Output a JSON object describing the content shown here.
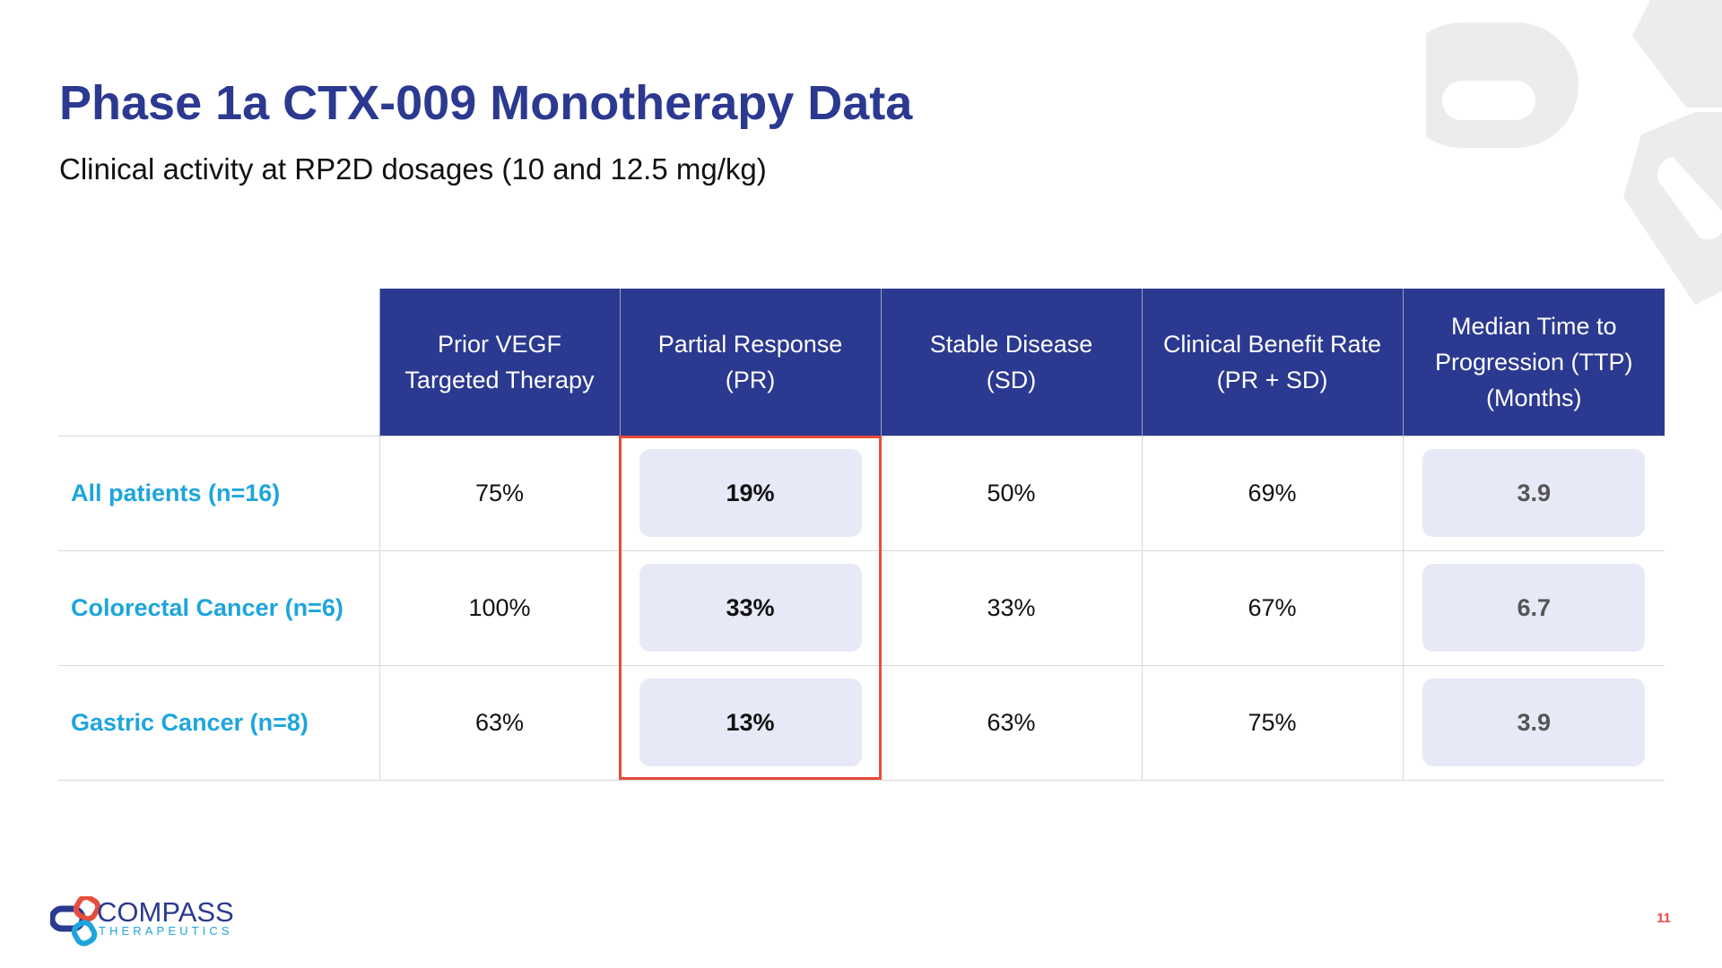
{
  "slide": {
    "title": "Phase 1a CTX-009 Monotherapy Data",
    "subtitle": "Clinical activity at RP2D dosages (10 and 12.5 mg/kg)",
    "page_number": "11"
  },
  "table": {
    "headers": [
      "Prior VEGF Targeted Therapy",
      "Partial Response (PR)",
      "Stable Disease (SD)",
      "Clinical Benefit Rate (PR + SD)",
      "Median Time to Progression (TTP) (Months)"
    ],
    "header_lines": [
      [
        "Prior VEGF",
        "Targeted Therapy"
      ],
      [
        "Partial Response",
        "(PR)"
      ],
      [
        "Stable Disease",
        "(SD)"
      ],
      [
        "Clinical Benefit Rate",
        "(PR + SD)"
      ],
      [
        "Median Time to",
        "Progression (TTP)",
        "(Months)"
      ]
    ],
    "rows": [
      {
        "label": "All patients (n=16)",
        "prior_vegf": "75%",
        "pr": "19%",
        "sd": "50%",
        "cbr": "69%",
        "ttp": "3.9"
      },
      {
        "label": "Colorectal Cancer (n=6)",
        "prior_vegf": "100%",
        "pr": "33%",
        "sd": "33%",
        "cbr": "67%",
        "ttp": "6.7"
      },
      {
        "label": "Gastric Cancer (n=8)",
        "prior_vegf": "63%",
        "pr": "13%",
        "sd": "63%",
        "cbr": "75%",
        "ttp": "3.9"
      }
    ]
  },
  "logo": {
    "word": "COMPASS",
    "sub": "THERAPEUTICS"
  },
  "colors": {
    "title": "#2b3990",
    "header_bg": "#2b3990",
    "row_label": "#1ea5dc",
    "highlight_border": "#e74c3c",
    "pill_bg": "#e7e9f7"
  }
}
